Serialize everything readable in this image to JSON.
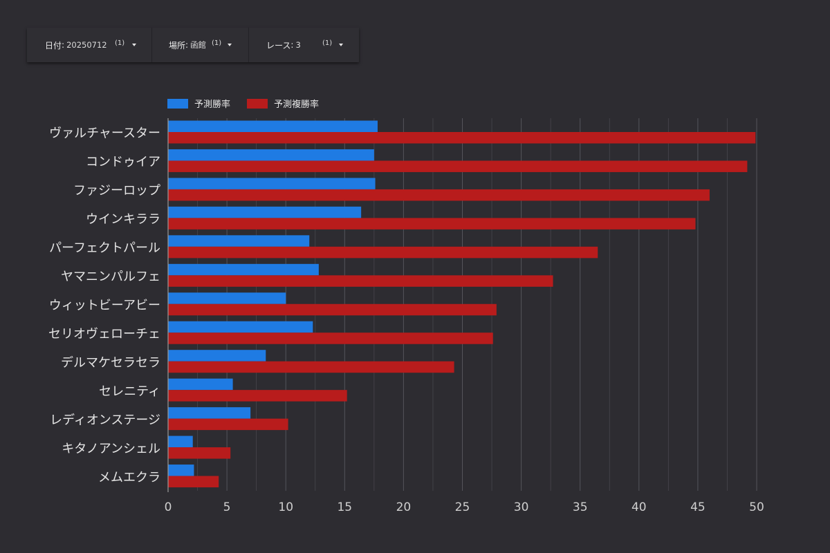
{
  "filters": [
    {
      "label": "日付",
      "value": "20250712",
      "count": "(1)"
    },
    {
      "label": "場所",
      "value": "函館",
      "count": "(1)"
    },
    {
      "label": "レース",
      "value": "3",
      "count": "(1)"
    }
  ],
  "colors": {
    "series1": "#1f7be3",
    "series2": "#b81c1c",
    "grid": "#5a5960",
    "axis": "#9a9a9a",
    "text": "#e6e6e6"
  },
  "chart_data": {
    "type": "bar",
    "orientation": "horizontal",
    "categories": [
      "ヴァルチャースター",
      "コンドゥイア",
      "ファジーロップ",
      "ウインキララ",
      "パーフェクトパール",
      "ヤマニンパルフェ",
      "ウィットビーアビー",
      "セリオヴェローチェ",
      "デルマケセラセラ",
      "セレニティ",
      "レディオンステージ",
      "キタノアンシェル",
      "メムエクラ"
    ],
    "series": [
      {
        "name": "予測勝率",
        "values": [
          17.8,
          17.5,
          17.6,
          16.4,
          12.0,
          12.8,
          10.0,
          12.3,
          8.3,
          5.5,
          7.0,
          2.1,
          2.2
        ]
      },
      {
        "name": "予測複勝率",
        "values": [
          49.9,
          49.2,
          46.0,
          44.8,
          36.5,
          32.7,
          27.9,
          27.6,
          24.3,
          15.2,
          10.2,
          5.3,
          4.3
        ]
      }
    ],
    "xticks": [
      0,
      5,
      10,
      15,
      20,
      25,
      30,
      35,
      40,
      45,
      50
    ],
    "xlim": [
      0,
      50
    ],
    "grid": true,
    "legend": "top-left"
  }
}
